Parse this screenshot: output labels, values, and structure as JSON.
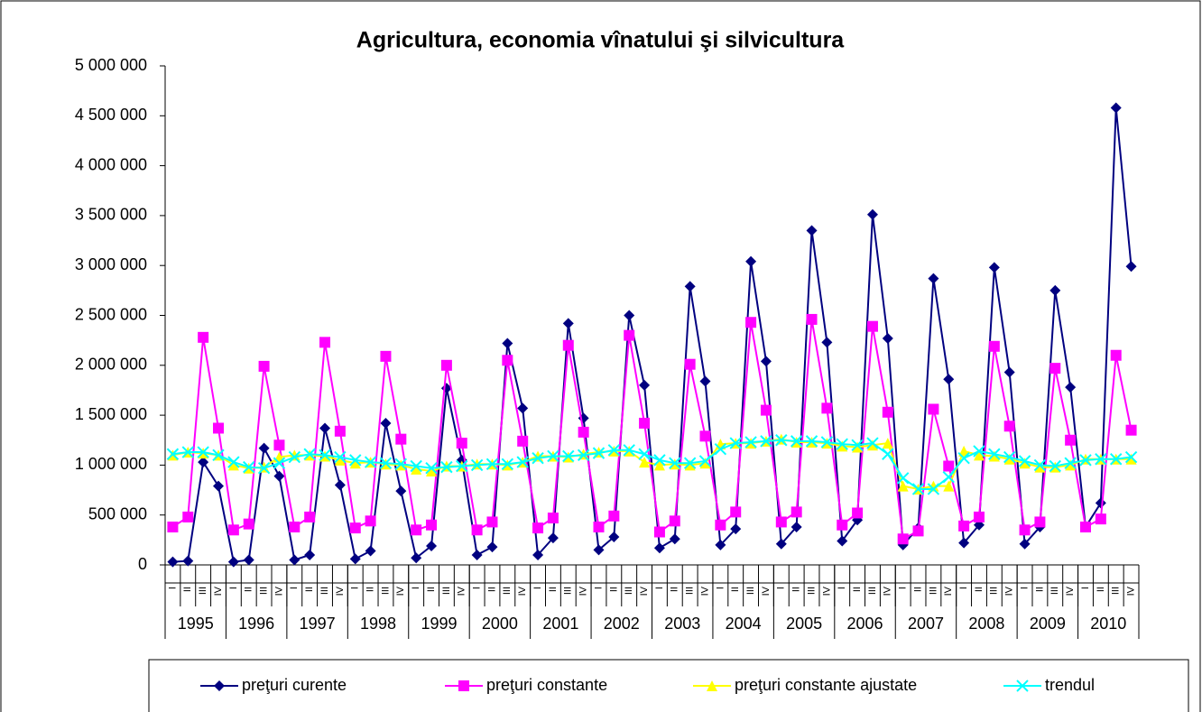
{
  "chart_data": {
    "type": "line",
    "title": "Agricultura, economia vînatului şi silvicultura",
    "years": [
      "1995",
      "1996",
      "1997",
      "1998",
      "1999",
      "2000",
      "2001",
      "2002",
      "2003",
      "2004",
      "2005",
      "2006",
      "2007",
      "2008",
      "2009",
      "2010"
    ],
    "categories": [
      "I",
      "II",
      "III",
      "IV",
      "I",
      "II",
      "III",
      "IV",
      "I",
      "II",
      "III",
      "IV",
      "I",
      "II",
      "III",
      "IV",
      "I",
      "II",
      "III",
      "IV",
      "I",
      "II",
      "III",
      "IV",
      "I",
      "II",
      "III",
      "IV",
      "I",
      "II",
      "III",
      "IV",
      "I",
      "II",
      "III",
      "IV",
      "I",
      "II",
      "III",
      "IV",
      "I",
      "II",
      "III",
      "IV",
      "I",
      "II",
      "III",
      "IV",
      "I",
      "II",
      "III",
      "IV",
      "I",
      "II",
      "III",
      "IV",
      "I",
      "II",
      "III",
      "IV",
      "I",
      "II",
      "III",
      "IV"
    ],
    "ylim": [
      0,
      5000000
    ],
    "yticks": [
      0,
      {
        "value": 500000,
        "label": "500 000"
      },
      {
        "value": 1000000,
        "label": "1 000 000"
      },
      {
        "value": 1500000,
        "label": "1 500 000"
      },
      {
        "value": 2000000,
        "label": "2 000 000"
      },
      {
        "value": 2500000,
        "label": "2 500 000"
      },
      {
        "value": 3000000,
        "label": "3 000 000"
      },
      {
        "value": 3500000,
        "label": "3 500 000"
      },
      {
        "value": 4000000,
        "label": "4 000 000"
      },
      {
        "value": 4500000,
        "label": "4 500 000"
      },
      {
        "value": 5000000,
        "label": "5 000 000"
      }
    ],
    "grid": false,
    "legend": "bottom",
    "series": [
      {
        "name": "preţuri curente",
        "color": "#000080",
        "marker": "diamond",
        "values": [
          30000,
          40000,
          1030000,
          790000,
          30000,
          50000,
          1170000,
          890000,
          50000,
          100000,
          1370000,
          800000,
          60000,
          140000,
          1420000,
          740000,
          70000,
          190000,
          1770000,
          1050000,
          100000,
          180000,
          2220000,
          1570000,
          100000,
          270000,
          2420000,
          1470000,
          150000,
          280000,
          2500000,
          1800000,
          170000,
          260000,
          2790000,
          1840000,
          200000,
          360000,
          3040000,
          2040000,
          210000,
          380000,
          3350000,
          2230000,
          240000,
          450000,
          3510000,
          2270000,
          200000,
          370000,
          2870000,
          1860000,
          220000,
          400000,
          2980000,
          1930000,
          210000,
          380000,
          2750000,
          1780000,
          380000,
          620000,
          4580000,
          2990000
        ]
      },
      {
        "name": "preţuri constante",
        "color": "#ff00ff",
        "marker": "square",
        "values": [
          380000,
          480000,
          2280000,
          1370000,
          350000,
          410000,
          1990000,
          1200000,
          380000,
          480000,
          2230000,
          1340000,
          370000,
          440000,
          2090000,
          1260000,
          350000,
          400000,
          2000000,
          1220000,
          350000,
          430000,
          2050000,
          1240000,
          370000,
          470000,
          2200000,
          1330000,
          380000,
          490000,
          2300000,
          1420000,
          330000,
          440000,
          2010000,
          1290000,
          400000,
          530000,
          2430000,
          1550000,
          430000,
          530000,
          2460000,
          1570000,
          400000,
          520000,
          2390000,
          1530000,
          260000,
          340000,
          1560000,
          990000,
          390000,
          480000,
          2190000,
          1390000,
          350000,
          430000,
          1970000,
          1250000,
          380000,
          460000,
          2100000,
          1350000
        ]
      },
      {
        "name": "preţuri constante ajustate",
        "color": "#ffff00",
        "marker": "triangle",
        "values": [
          1100000,
          1130000,
          1120000,
          1100000,
          1000000,
          970000,
          980000,
          1080000,
          1100000,
          1100000,
          1090000,
          1050000,
          1020000,
          1030000,
          1010000,
          1000000,
          960000,
          940000,
          990000,
          990000,
          1010000,
          1010000,
          1000000,
          1030000,
          1090000,
          1090000,
          1080000,
          1110000,
          1130000,
          1140000,
          1140000,
          1030000,
          1000000,
          1010000,
          1000000,
          1020000,
          1210000,
          1220000,
          1220000,
          1240000,
          1260000,
          1230000,
          1230000,
          1220000,
          1190000,
          1180000,
          1200000,
          1220000,
          790000,
          760000,
          790000,
          790000,
          1140000,
          1100000,
          1090000,
          1060000,
          1020000,
          980000,
          980000,
          1000000,
          1060000,
          1060000,
          1060000,
          1060000
        ]
      },
      {
        "name": "trendul",
        "color": "#00ffff",
        "marker": "x",
        "values": [
          1110000,
          1130000,
          1130000,
          1100000,
          1030000,
          980000,
          970000,
          1020000,
          1080000,
          1110000,
          1100000,
          1080000,
          1050000,
          1030000,
          1020000,
          1010000,
          990000,
          970000,
          980000,
          990000,
          1000000,
          1010000,
          1010000,
          1030000,
          1070000,
          1090000,
          1090000,
          1100000,
          1120000,
          1150000,
          1150000,
          1110000,
          1050000,
          1020000,
          1020000,
          1040000,
          1160000,
          1220000,
          1230000,
          1240000,
          1250000,
          1240000,
          1240000,
          1230000,
          1210000,
          1200000,
          1220000,
          1110000,
          870000,
          760000,
          760000,
          880000,
          1070000,
          1140000,
          1110000,
          1080000,
          1040000,
          1000000,
          990000,
          1020000,
          1050000,
          1060000,
          1060000,
          1080000
        ]
      }
    ]
  }
}
